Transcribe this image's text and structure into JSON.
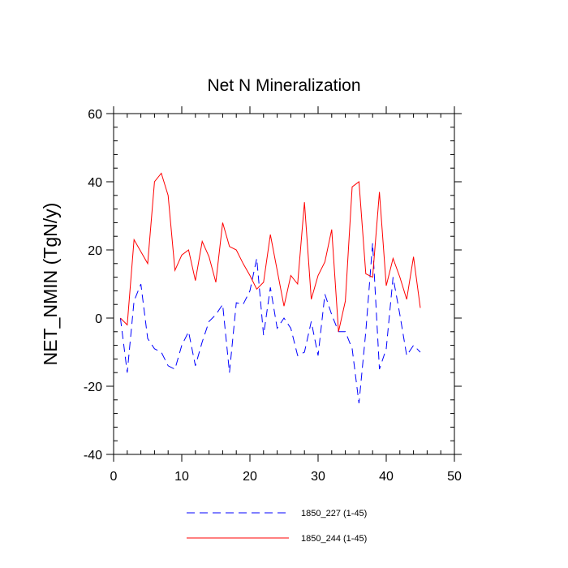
{
  "chart_data": {
    "type": "line",
    "title": "Net N Mineralization",
    "xlabel": "",
    "ylabel": "NET_NMIN  (TgN/y)",
    "xlim": [
      0,
      50
    ],
    "ylim": [
      -40,
      60
    ],
    "xticks": [
      0,
      10,
      20,
      30,
      40,
      50
    ],
    "yticks": [
      -40,
      -20,
      0,
      20,
      40,
      60
    ],
    "x_minor_step": 2,
    "y_minor_step": 4,
    "legend_position": "bottom",
    "series": [
      {
        "name": "1850_227 (1-45)",
        "color": "#0000ff",
        "style": "dashed",
        "x": [
          1,
          2,
          3,
          4,
          5,
          6,
          7,
          8,
          9,
          10,
          11,
          12,
          13,
          14,
          15,
          16,
          17,
          18,
          19,
          20,
          21,
          22,
          23,
          24,
          25,
          26,
          27,
          28,
          29,
          30,
          31,
          32,
          33,
          34,
          35,
          36,
          37,
          38,
          39,
          40,
          41,
          42,
          43,
          44,
          45
        ],
        "values": [
          0,
          -16,
          5,
          10,
          -6,
          -9,
          -10,
          -14,
          -15,
          -8,
          -4,
          -14,
          -7,
          -1,
          1,
          4,
          -16,
          4.5,
          4,
          8,
          17.5,
          -5,
          9,
          -3,
          0,
          -3,
          -11,
          -10,
          -1,
          -11,
          7,
          1,
          -4,
          -4,
          -9,
          -25,
          -4,
          22,
          -15,
          -9,
          12,
          1,
          -11,
          -8,
          -10
        ]
      },
      {
        "name": "1850_244 (1-45)",
        "color": "#ff0000",
        "style": "solid",
        "x": [
          1,
          2,
          3,
          4,
          5,
          6,
          7,
          8,
          9,
          10,
          11,
          12,
          13,
          14,
          15,
          16,
          17,
          18,
          19,
          20,
          21,
          22,
          23,
          24,
          25,
          26,
          27,
          28,
          29,
          30,
          31,
          32,
          33,
          34,
          35,
          36,
          37,
          38,
          39,
          40,
          41,
          42,
          43,
          44,
          45
        ],
        "values": [
          0,
          -2,
          23,
          19.5,
          16,
          40,
          42.5,
          36,
          14,
          18.5,
          20,
          11,
          22.5,
          18,
          10.5,
          28,
          21,
          20,
          16,
          12.5,
          8.5,
          10.5,
          24.5,
          14,
          3.5,
          12.5,
          10,
          34,
          5.5,
          12.5,
          16.5,
          26,
          -4,
          5,
          38.5,
          40,
          13,
          12,
          37,
          9.5,
          17.5,
          12,
          5.5,
          18,
          3
        ]
      }
    ]
  }
}
